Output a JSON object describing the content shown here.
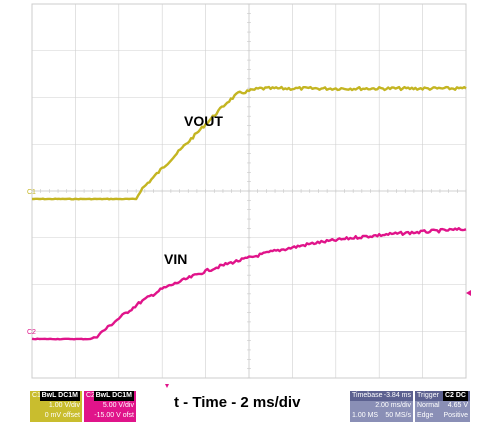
{
  "chart_data": {
    "type": "line",
    "xlabel": "t - Time - 2 ms/div",
    "colors": {
      "vout": "#c4b522",
      "vin": "#e0148a",
      "grid": "#cccccc",
      "ch1_box": "#c9bd2e",
      "ch2_box": "#e0148a",
      "info_box": "#8a8fb6"
    },
    "series": [
      {
        "name": "VOUT",
        "channel_marker": "C1",
        "x": [
          -8.0,
          -3.2,
          -3.0,
          -1.0,
          1.0,
          1.5,
          2.5,
          12.0
        ],
        "y": [
          0.0,
          0.0,
          0.25,
          1.55,
          2.85,
          3.1,
          3.25,
          3.25
        ]
      },
      {
        "name": "VIN",
        "channel_marker": "C2",
        "x": [
          -8.0,
          -5.3,
          -5.0,
          -4.0,
          -3.0,
          -2.0,
          -1.0,
          0.0,
          1.0,
          2.0,
          3.0,
          4.0,
          5.0,
          6.0,
          7.0,
          8.0,
          9.0,
          10.0,
          11.0,
          12.0
        ],
        "y": [
          0.0,
          0.0,
          0.1,
          0.7,
          1.25,
          1.7,
          2.0,
          2.3,
          2.55,
          2.75,
          2.95,
          3.1,
          3.25,
          3.35,
          3.45,
          3.52,
          3.58,
          3.63,
          3.68,
          3.72
        ]
      }
    ]
  },
  "labels": {
    "vout": "VOUT",
    "vin": "VIN",
    "c1": "C1",
    "c2": "C2"
  },
  "ch1": {
    "name": "C1",
    "tag": "BwL DC1M",
    "scale": "1.00 V/div",
    "offset": "0 mV offset"
  },
  "ch2": {
    "name": "C2",
    "tag": "BwL DC1M",
    "scale": "5.00 V/div",
    "offset": "-15.00 V ofst"
  },
  "timebase": {
    "label": "Timebase",
    "delay": "-3.84 ms",
    "scale": "2.00 ms/div",
    "samples": "1.00 MS",
    "rate": "50 MS/s"
  },
  "trigger": {
    "label": "Trigger",
    "tag": "C2 DC",
    "mode": "Normal",
    "level": "4.65 V",
    "type": "Edge",
    "slope": "Positive"
  }
}
